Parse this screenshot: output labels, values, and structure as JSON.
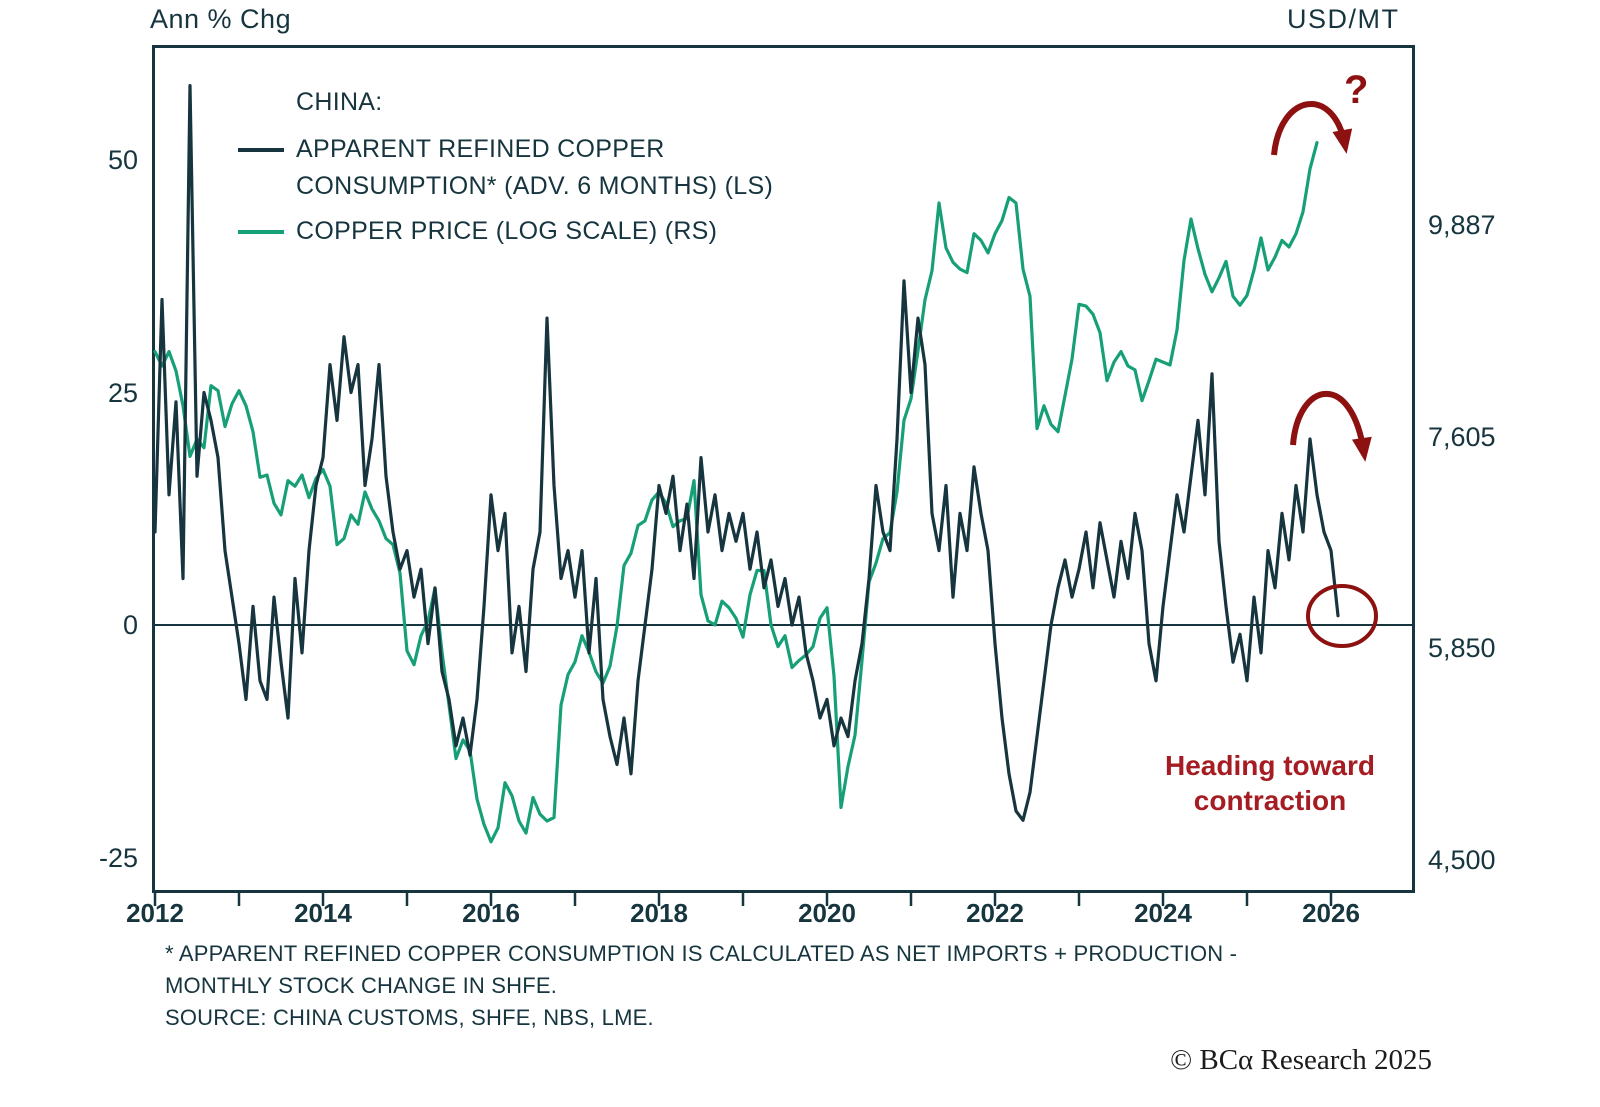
{
  "header": {
    "left_axis_title": "Ann % Chg",
    "right_axis_title": "USD/MT"
  },
  "legend": {
    "title": "CHINA:",
    "entries": [
      {
        "label_line1": "APPARENT REFINED COPPER",
        "label_line2": "CONSUMPTION* (ADV. 6 MONTHS)  (LS)"
      },
      {
        "label_line1": "COPPER PRICE (LOG SCALE) (RS)",
        "label_line2": ""
      }
    ]
  },
  "annotations": {
    "question_mark": "?",
    "contraction_line1": "Heading toward",
    "contraction_line2": "contraction"
  },
  "footnote": {
    "lines": [
      "* APPARENT REFINED COPPER CONSUMPTION IS CALCULATED AS NET IMPORTS + PRODUCTION -",
      "MONTHLY STOCK CHANGE IN SHFE.",
      "SOURCE: CHINA CUSTOMS, SHFE, NBS, LME."
    ]
  },
  "copyright": "© BCα Research 2025",
  "colors": {
    "ink": "#16353e",
    "consumption_line": "#16353e",
    "price_line": "#17a077",
    "annotation_arrow": "#8e1111",
    "annotation_text": "#a51c22"
  },
  "chart_data": {
    "type": "line",
    "title": "CHINA: APPARENT REFINED COPPER CONSUMPTION (ADV. 6 MONTHS) vs COPPER PRICE",
    "x_start_year": 2012,
    "x_interval": "monthly",
    "x_ticks": [
      2012,
      2014,
      2016,
      2018,
      2020,
      2022,
      2024,
      2026
    ],
    "left_axis": {
      "label": "Ann % Chg",
      "ticks": [
        50,
        25,
        0,
        -25
      ],
      "range": [
        -27,
        62
      ]
    },
    "right_axis": {
      "label": "USD/MT",
      "scale": "log",
      "tick_labels": [
        "9,887",
        "7,605",
        "5,850",
        "4,500"
      ],
      "tick_values": [
        9887,
        7605,
        5850,
        4500
      ]
    },
    "grid": false,
    "legend_position": "top-left",
    "series": [
      {
        "name": "APPARENT REFINED COPPER CONSUMPTION* (ADV. 6 MONTHS) (LS)",
        "axis": "left",
        "unit": "ann % chg",
        "values": [
          10,
          35,
          14,
          24,
          5,
          58,
          16,
          25,
          22,
          18,
          8,
          3,
          -2,
          -8,
          2,
          -6,
          -8,
          3,
          -4,
          -10,
          5,
          -3,
          8,
          15,
          18,
          28,
          22,
          31,
          25,
          28,
          15,
          20,
          28,
          16,
          10,
          6,
          8,
          3,
          6,
          -2,
          4,
          -5,
          -8,
          -13,
          -10,
          -14,
          -8,
          2,
          14,
          8,
          12,
          -3,
          2,
          -5,
          6,
          10,
          33,
          15,
          5,
          8,
          3,
          8,
          -3,
          5,
          -8,
          -12,
          -15,
          -10,
          -16,
          -6,
          0,
          6,
          15,
          12,
          16,
          8,
          13,
          5,
          18,
          10,
          14,
          8,
          12,
          9,
          12,
          6,
          10,
          4,
          7,
          2,
          5,
          0,
          3,
          -3,
          -6,
          -10,
          -8,
          -13,
          -10,
          -12,
          -6,
          -2,
          5,
          15,
          10,
          8,
          20,
          37,
          25,
          33,
          28,
          12,
          8,
          15,
          3,
          12,
          8,
          17,
          12,
          8,
          -2,
          -10,
          -16,
          -20,
          -21,
          -18,
          -12,
          -6,
          0,
          4,
          7,
          3,
          6,
          10,
          4,
          11,
          7,
          3,
          9,
          5,
          12,
          8,
          -2,
          -6,
          2,
          8,
          14,
          10,
          16,
          22,
          14,
          27,
          9,
          2,
          -4,
          -1,
          -6,
          3,
          -3,
          8,
          4,
          12,
          7,
          15,
          10,
          20,
          14,
          10,
          8,
          1
        ]
      },
      {
        "name": "COPPER PRICE (LOG SCALE) (RS)",
        "axis": "right",
        "unit": "USD/MT",
        "values": [
          8450,
          8300,
          8450,
          8250,
          7900,
          7420,
          7580,
          7500,
          8100,
          8050,
          7700,
          7920,
          8050,
          7900,
          7650,
          7230,
          7250,
          7000,
          6900,
          7200,
          7150,
          7250,
          7050,
          7220,
          7300,
          7150,
          6650,
          6700,
          6900,
          6820,
          7100,
          6950,
          6850,
          6700,
          6650,
          6420,
          5830,
          5730,
          5940,
          6050,
          6300,
          5820,
          5450,
          5100,
          5220,
          5150,
          4850,
          4700,
          4600,
          4680,
          4950,
          4870,
          4720,
          4650,
          4860,
          4760,
          4720,
          4740,
          5450,
          5660,
          5750,
          5940,
          5820,
          5680,
          5600,
          5720,
          6010,
          6480,
          6580,
          6810,
          6850,
          7030,
          7100,
          7000,
          6800,
          6850,
          6870,
          7200,
          6250,
          6050,
          6020,
          6200,
          6150,
          6070,
          5930,
          6250,
          6440,
          6440,
          6020,
          5860,
          5940,
          5710,
          5760,
          5800,
          5860,
          6070,
          6150,
          5650,
          4800,
          5050,
          5250,
          5760,
          6350,
          6500,
          6700,
          6750,
          7100,
          7760,
          7970,
          8460,
          9010,
          9340,
          10160,
          9610,
          9440,
          9360,
          9320,
          9780,
          9700,
          9550,
          9780,
          9940,
          10230,
          10160,
          9360,
          9050,
          7680,
          7900,
          7720,
          7650,
          8000,
          8370,
          8960,
          8940,
          8850,
          8650,
          8150,
          8340,
          8450,
          8300,
          8260,
          7950,
          8150,
          8370,
          8340,
          8310,
          8680,
          9460,
          9960,
          9600,
          9300,
          9100,
          9260,
          9450,
          9050,
          8950,
          9060,
          9350,
          9730,
          9350,
          9500,
          9700,
          9620,
          9780,
          10050,
          10600,
          10950
        ]
      }
    ]
  }
}
